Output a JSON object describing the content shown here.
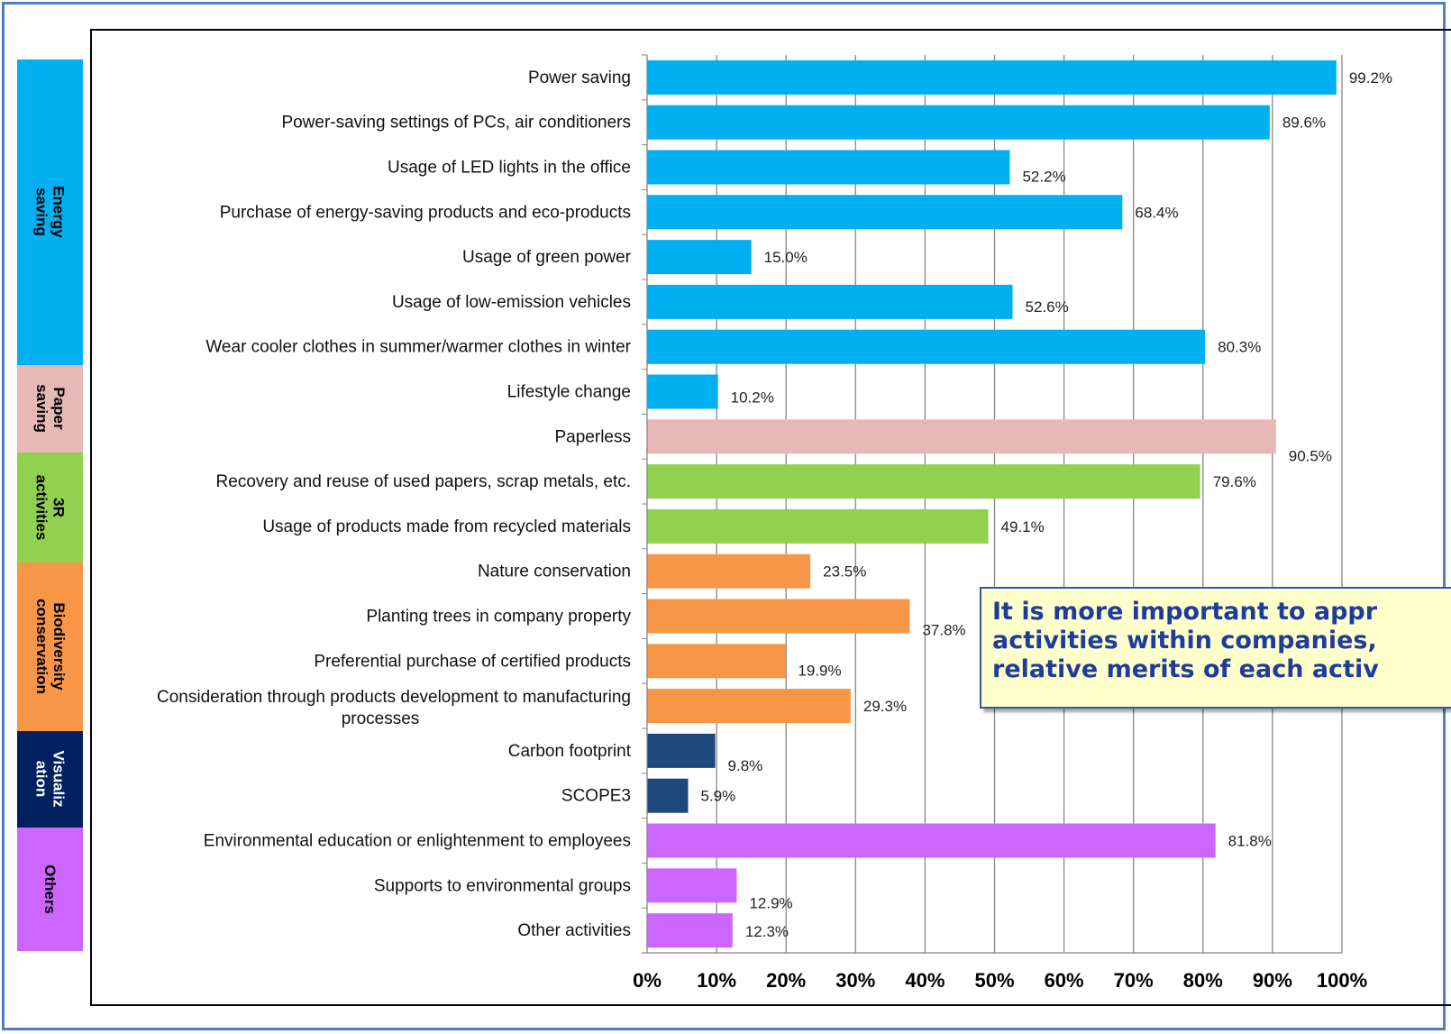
{
  "colors": {
    "energy": "#00b0f0",
    "paper": "#e6b8b7",
    "threeR": "#92d050",
    "bio": "#f79646",
    "visual": "#1f497d",
    "others": "#cc66ff",
    "group_visual_band": "#002060",
    "callout_text": "#1f3c9a",
    "callout_bg": "#ffffcc",
    "frame": "#4f7fbf"
  },
  "groups": [
    {
      "label": "Energy saving",
      "color": "#00b0f0",
      "text_color": "#000000"
    },
    {
      "label": "Paper\nsaving",
      "color": "#e6b8b7",
      "text_color": "#000000"
    },
    {
      "label": "3R\nactivities",
      "color": "#92d050",
      "text_color": "#000000"
    },
    {
      "label": "Biodiversity\nconservation",
      "color": "#f79646",
      "text_color": "#000000"
    },
    {
      "label": "Visualiz\nation",
      "color": "#002060",
      "text_color": "#ffffff"
    },
    {
      "label": "Others",
      "color": "#cc66ff",
      "text_color": "#000000"
    }
  ],
  "callout": {
    "text": "It is more important to appr\nactivities within companies,\nrelative merits of each activ"
  },
  "chart_data": {
    "type": "bar",
    "orientation": "horizontal",
    "xlim": [
      0,
      100
    ],
    "x_ticks": [
      "0%",
      "10%",
      "20%",
      "30%",
      "40%",
      "50%",
      "60%",
      "70%",
      "80%",
      "90%",
      "100%"
    ],
    "grid": true,
    "categories": [
      "Power saving",
      "Power-saving settings of PCs, air conditioners",
      "Usage of LED lights in the office",
      "Purchase of energy-saving products and eco-products",
      "Usage of green power",
      "Usage of low-emission vehicles",
      "Wear cooler clothes in summer/warmer clothes in winter",
      "Lifestyle change",
      "Paperless",
      "Recovery and reuse of used papers, scrap metals, etc.",
      "Usage of products made from recycled materials",
      "Nature conservation",
      "Planting trees in company property",
      "Preferential purchase of certified products",
      "Consideration through products development to manufacturing processes",
      "Carbon footprint",
      "SCOPE3",
      "Environmental education or enlightenment to employees",
      "Supports to environmental groups",
      "Other activities"
    ],
    "values": [
      99.2,
      89.6,
      52.2,
      68.4,
      15.0,
      52.6,
      80.3,
      10.2,
      90.5,
      79.6,
      49.1,
      23.5,
      37.8,
      19.9,
      29.3,
      9.8,
      5.9,
      81.8,
      12.9,
      12.3
    ],
    "data_labels": [
      "99.2%",
      "89.6%",
      "52.2%",
      "68.4%",
      "15.0%",
      "52.6%",
      "80.3%",
      "10.2%",
      "90.5%",
      "79.6%",
      "49.1%",
      "23.5%",
      "37.8%",
      "19.9%",
      "29.3%",
      "9.8%",
      "5.9%",
      "81.8%",
      "12.9%",
      "12.3%"
    ],
    "bar_groups": [
      "energy",
      "energy",
      "energy",
      "energy",
      "energy",
      "energy",
      "energy",
      "energy",
      "paper",
      "threeR",
      "threeR",
      "bio",
      "bio",
      "bio",
      "bio",
      "visual",
      "visual",
      "others",
      "others",
      "others"
    ]
  }
}
